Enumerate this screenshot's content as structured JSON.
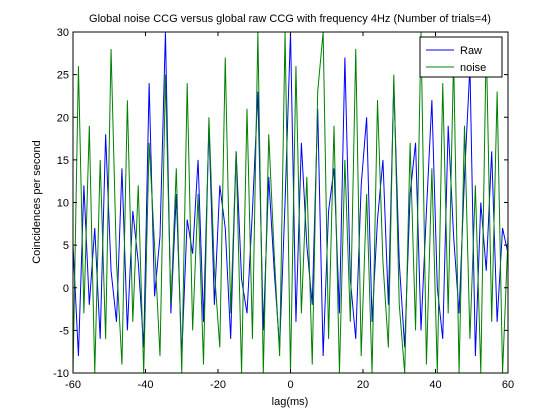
{
  "chart_data": {
    "type": "line",
    "title": "Global noise CCG versus global raw CCG with frequency 4Hz (Number of trials=4)",
    "xlabel": "lag(ms)",
    "ylabel": "Coincidences per second",
    "xlim": [
      -60,
      60
    ],
    "ylim": [
      -10,
      30
    ],
    "xticks": [
      -60,
      -40,
      -20,
      0,
      20,
      40,
      60
    ],
    "yticks": [
      -10,
      -5,
      0,
      5,
      10,
      15,
      20,
      25,
      30
    ],
    "grid": false,
    "legend_position": "top-right",
    "x": [
      -60,
      -58.5,
      -57,
      -55.5,
      -54,
      -52.5,
      -51,
      -49.5,
      -48,
      -46.5,
      -45,
      -43.5,
      -42,
      -40.5,
      -39,
      -37.5,
      -36,
      -34.5,
      -33,
      -31.5,
      -30,
      -28.5,
      -27,
      -25.5,
      -24,
      -22.5,
      -21,
      -19.5,
      -18,
      -16.5,
      -15,
      -13.5,
      -12,
      -10.5,
      -9,
      -7.5,
      -6,
      -4.5,
      -3,
      -1.5,
      0,
      1.5,
      3,
      4.5,
      6,
      7.5,
      9,
      10.5,
      12,
      13.5,
      15,
      16.5,
      18,
      19.5,
      21,
      22.5,
      24,
      25.5,
      27,
      28.5,
      30,
      31.5,
      33,
      34.5,
      36,
      37.5,
      39,
      40.5,
      42,
      43.5,
      45,
      46.5,
      48,
      49.5,
      51,
      52.5,
      54,
      55.5,
      57,
      58.5,
      60
    ],
    "series": [
      {
        "name": "Raw",
        "color": "#0000ff",
        "values": [
          5,
          -8,
          12,
          -2,
          7,
          -6,
          18,
          2,
          -4,
          14,
          -5,
          9,
          3,
          -7,
          24,
          -1,
          6,
          30,
          -3,
          11,
          -8,
          8,
          4,
          15,
          -4,
          19,
          -2,
          12,
          7,
          -6,
          16,
          1,
          -3,
          9,
          23,
          -5,
          13,
          2,
          -7,
          10,
          30,
          -4,
          17,
          5,
          -2,
          21,
          -8,
          9,
          14,
          -3,
          27,
          1,
          -6,
          12,
          20,
          -4,
          8,
          15,
          -2,
          24,
          3,
          -7,
          11,
          17,
          -5,
          9,
          22,
          0,
          -6,
          19,
          6,
          -3,
          13,
          26,
          -8,
          10,
          2,
          16,
          -4,
          7,
          4
        ]
      },
      {
        "name": "noise",
        "color": "#008000",
        "values": [
          -10,
          26,
          -3,
          19,
          -10,
          15,
          -6,
          28,
          3,
          -9,
          22,
          -4,
          12,
          -10,
          17,
          5,
          -8,
          25,
          -2,
          14,
          -10,
          24,
          -5,
          11,
          -9,
          20,
          2,
          -7,
          27,
          -3,
          16,
          -10,
          21,
          -6,
          30,
          -10,
          18,
          4,
          -8,
          30,
          -10,
          26,
          -3,
          13,
          -9,
          23,
          30,
          -6,
          19,
          -10,
          15,
          -4,
          28,
          -8,
          11,
          -10,
          22,
          3,
          -7,
          25,
          -2,
          -10,
          17,
          -5,
          30,
          -9,
          14,
          -10,
          24,
          -3,
          27,
          -10,
          19,
          -6,
          12,
          -10,
          29,
          -4,
          23,
          -10,
          6
        ]
      }
    ]
  }
}
